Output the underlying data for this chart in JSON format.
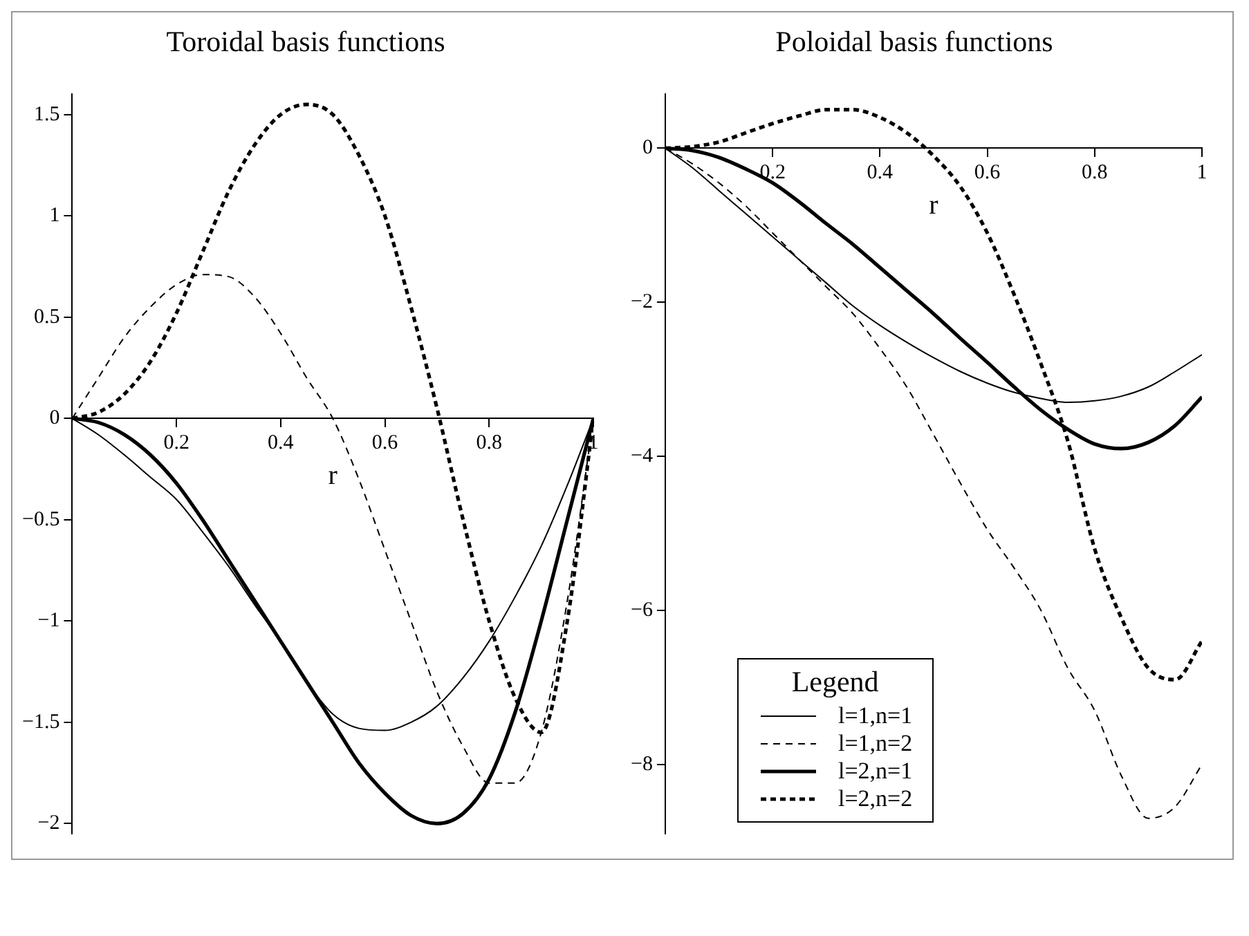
{
  "chart_data": [
    {
      "type": "line",
      "title": "Toroidal basis functions",
      "xlabel": "r",
      "xlim": [
        0,
        1
      ],
      "xticks": [
        0.2,
        0.4,
        0.6,
        0.8,
        1
      ],
      "ylim": [
        -2.05,
        1.6
      ],
      "yticks": [
        {
          "value": -2,
          "label": "−2"
        },
        {
          "value": -1.5,
          "label": "−1.5"
        },
        {
          "value": -1,
          "label": "−1"
        },
        {
          "value": -0.5,
          "label": "−0.5"
        },
        0,
        0.5,
        1,
        1.5
      ],
      "x": [
        0,
        0.05,
        0.1,
        0.15,
        0.2,
        0.25,
        0.3,
        0.35,
        0.4,
        0.45,
        0.5,
        0.55,
        0.6,
        0.65,
        0.7,
        0.75,
        0.8,
        0.85,
        0.9,
        0.95,
        1
      ],
      "legend": false,
      "grid": false,
      "marker": "none",
      "series": [
        {
          "color": "#000000",
          "line_style": "solid",
          "values": [
            0,
            -0.08,
            -0.18,
            -0.29,
            -0.4,
            -0.56,
            -0.73,
            -0.92,
            -1.1,
            -1.3,
            -1.46,
            -1.53,
            -1.54,
            -1.5,
            -1.42,
            -1.28,
            -1.1,
            -0.88,
            -0.63,
            -0.33,
            0
          ]
        },
        {
          "color": "#000000",
          "line_style": "dashed",
          "values": [
            0,
            0.2,
            0.4,
            0.55,
            0.66,
            0.71,
            0.7,
            0.6,
            0.42,
            0.2,
            0,
            -0.3,
            -0.65,
            -1,
            -1.35,
            -1.62,
            -1.8,
            -1.8,
            -1.55,
            -0.9,
            0
          ]
        },
        {
          "color": "#000000",
          "line_style": "solid",
          "values": [
            0,
            -0.02,
            -0.08,
            -0.18,
            -0.32,
            -0.5,
            -0.7,
            -0.9,
            -1.1,
            -1.3,
            -1.5,
            -1.7,
            -1.85,
            -1.96,
            -2,
            -1.95,
            -1.78,
            -1.45,
            -1,
            -0.5,
            0
          ]
        },
        {
          "color": "#000000",
          "line_style": "dotted",
          "values": [
            0,
            0.03,
            0.12,
            0.28,
            0.52,
            0.82,
            1.12,
            1.35,
            1.5,
            1.55,
            1.5,
            1.3,
            1,
            0.55,
            0.05,
            -0.5,
            -1,
            -1.38,
            -1.55,
            -1,
            0
          ]
        }
      ]
    },
    {
      "type": "line",
      "title": "Poloidal basis functions",
      "xlabel": "r",
      "legend_title": "Legend",
      "xlim": [
        0,
        1
      ],
      "xticks": [
        0.2,
        0.4,
        0.6,
        0.8,
        1
      ],
      "ylim": [
        -8.9,
        0.7
      ],
      "yticks": [
        {
          "value": -8,
          "label": "−8"
        },
        {
          "value": -6,
          "label": "−6"
        },
        {
          "value": -4,
          "label": "−4"
        },
        {
          "value": -2,
          "label": "−2"
        },
        0
      ],
      "x": [
        0,
        0.05,
        0.1,
        0.15,
        0.2,
        0.25,
        0.3,
        0.35,
        0.4,
        0.45,
        0.5,
        0.55,
        0.6,
        0.65,
        0.7,
        0.75,
        0.8,
        0.85,
        0.9,
        0.95,
        1
      ],
      "legend": "bottom left",
      "grid": false,
      "marker": "none",
      "series": [
        {
          "name": "l=1,n=1",
          "color": "#000000",
          "line_style": "solid",
          "values": [
            0,
            -0.25,
            -0.55,
            -0.85,
            -1.15,
            -1.45,
            -1.75,
            -2.05,
            -2.3,
            -2.52,
            -2.72,
            -2.9,
            -3.05,
            -3.17,
            -3.25,
            -3.3,
            -3.28,
            -3.22,
            -3.1,
            -2.9,
            -2.68
          ]
        },
        {
          "name": "l=1,n=2",
          "color": "#000000",
          "line_style": "dashed",
          "values": [
            0,
            -0.2,
            -0.45,
            -0.75,
            -1.1,
            -1.45,
            -1.8,
            -2.15,
            -2.6,
            -3.1,
            -3.72,
            -4.35,
            -4.95,
            -5.45,
            -6,
            -6.75,
            -7.3,
            -8.15,
            -8.7,
            -8.55,
            -8
          ]
        },
        {
          "name": "l=2,n=1",
          "color": "#000000",
          "line_style": "solid",
          "values": [
            0,
            -0.03,
            -0.12,
            -0.27,
            -0.45,
            -0.7,
            -0.98,
            -1.25,
            -1.55,
            -1.85,
            -2.15,
            -2.47,
            -2.78,
            -3.1,
            -3.4,
            -3.65,
            -3.84,
            -3.9,
            -3.82,
            -3.6,
            -3.23
          ]
        },
        {
          "name": "l=2,n=2",
          "color": "#000000",
          "line_style": "dotted",
          "values": [
            0,
            0.02,
            0.08,
            0.2,
            0.32,
            0.42,
            0.5,
            0.5,
            0.4,
            0.2,
            -0.1,
            -0.5,
            -1.1,
            -1.9,
            -2.8,
            -3.8,
            -5.2,
            -6.1,
            -6.75,
            -6.9,
            -6.4
          ]
        }
      ]
    }
  ]
}
